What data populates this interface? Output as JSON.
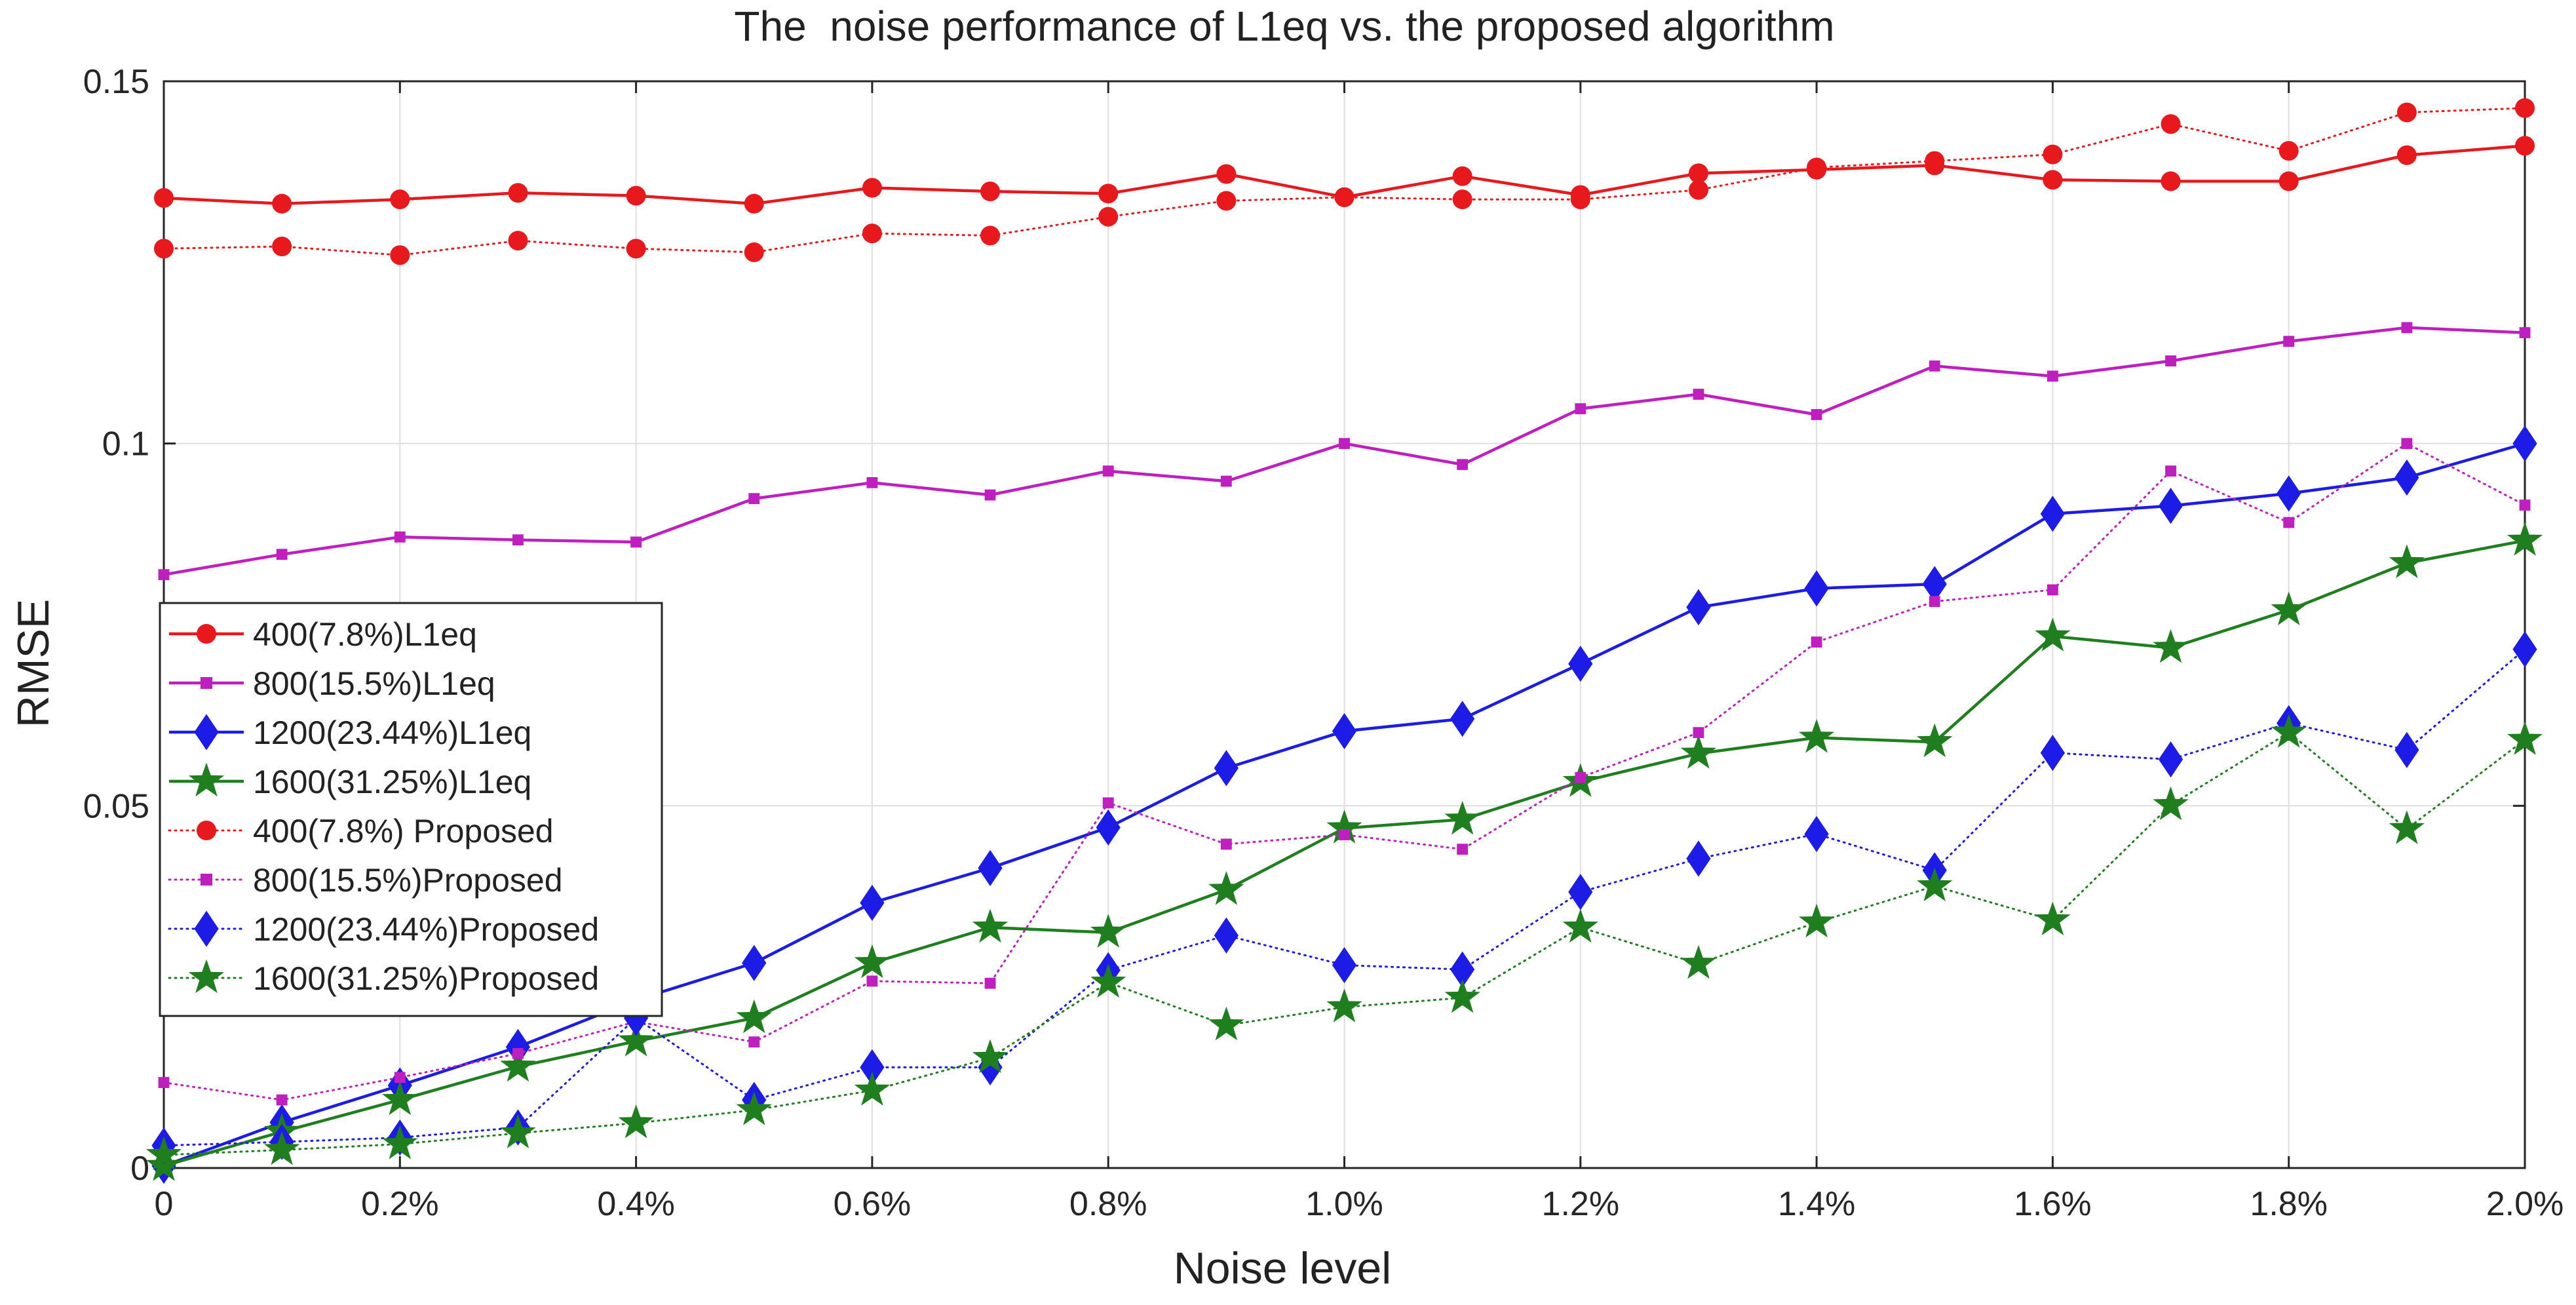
{
  "chart_data": {
    "type": "line",
    "title": "The  noise performance of L1eq vs. the proposed algorithm",
    "xlabel": "Noise level",
    "ylabel": "RMSE",
    "x": [
      0,
      0.1,
      0.2,
      0.3,
      0.4,
      0.5,
      0.6,
      0.7,
      0.8,
      0.9,
      1.0,
      1.1,
      1.2,
      1.3,
      1.4,
      1.5,
      1.6,
      1.7,
      1.8,
      1.9,
      2.0
    ],
    "xlim": [
      0,
      2.0
    ],
    "ylim": [
      0,
      0.15
    ],
    "xticks": [
      0,
      0.2,
      0.4,
      0.6,
      0.8,
      1.0,
      1.2,
      1.4,
      1.6,
      1.8,
      2.0
    ],
    "xtick_labels": [
      "0",
      "0.2%",
      "0.4%",
      "0.6%",
      "0.8%",
      "1.0%",
      "1.2%",
      "1.4%",
      "1.6%",
      "1.8%",
      "2.0%"
    ],
    "yticks": [
      0,
      0.05,
      0.1,
      0.15
    ],
    "ytick_labels": [
      "0",
      "0.05",
      "0.1",
      "0.15"
    ],
    "grid": true,
    "legend_position": "left-middle",
    "series": [
      {
        "name": "400(7.8%)L1eq",
        "color": "#e8191d",
        "style": "solid",
        "marker": "circle",
        "values": [
          0.1339,
          0.1331,
          0.1337,
          0.1346,
          0.1342,
          0.1331,
          0.1353,
          0.1348,
          0.1345,
          0.1372,
          0.134,
          0.1369,
          0.1343,
          0.1373,
          0.1378,
          0.1384,
          0.1364,
          0.1362,
          0.1362,
          0.1398,
          0.1411
        ]
      },
      {
        "name": "800(15.5%)L1eq",
        "color": "#bf1fbf",
        "style": "solid",
        "marker": "square",
        "values": [
          0.0819,
          0.0847,
          0.0871,
          0.0867,
          0.0864,
          0.0924,
          0.0946,
          0.0929,
          0.0962,
          0.0948,
          0.1,
          0.0971,
          0.1048,
          0.1068,
          0.104,
          0.1107,
          0.1093,
          0.1114,
          0.1141,
          0.116,
          0.1153
        ]
      },
      {
        "name": "1200(23.44%)L1eq",
        "color": "#1c1ce6",
        "style": "solid",
        "marker": "diamond",
        "values": [
          0.0003,
          0.0063,
          0.0114,
          0.0167,
          0.0232,
          0.0283,
          0.0366,
          0.0414,
          0.047,
          0.0552,
          0.0603,
          0.062,
          0.0696,
          0.0774,
          0.08,
          0.0806,
          0.0903,
          0.0914,
          0.0931,
          0.0953,
          0.1
        ]
      },
      {
        "name": "1600(31.25%)L1eq",
        "color": "#1f7f1f",
        "style": "solid",
        "marker": "star",
        "values": [
          0.0003,
          0.005,
          0.0094,
          0.014,
          0.0175,
          0.0207,
          0.0283,
          0.0332,
          0.0325,
          0.0384,
          0.0469,
          0.0481,
          0.0533,
          0.0572,
          0.0594,
          0.0588,
          0.0734,
          0.0718,
          0.077,
          0.0835,
          0.0866
        ]
      },
      {
        "name": "400(7.8%) Proposed",
        "color": "#e8191d",
        "style": "dotted",
        "marker": "circle",
        "values": [
          0.1269,
          0.1272,
          0.126,
          0.128,
          0.1269,
          0.1264,
          0.129,
          0.1287,
          0.1313,
          0.1335,
          0.134,
          0.1337,
          0.1337,
          0.135,
          0.1381,
          0.139,
          0.1399,
          0.1441,
          0.1404,
          0.1457,
          0.1463
        ]
      },
      {
        "name": "800(15.5%)Proposed",
        "color": "#bf1fbf",
        "style": "dotted",
        "marker": "square",
        "values": [
          0.0118,
          0.0094,
          0.0125,
          0.0158,
          0.0202,
          0.0174,
          0.0258,
          0.0255,
          0.0504,
          0.0447,
          0.046,
          0.044,
          0.0539,
          0.0601,
          0.0726,
          0.0782,
          0.0798,
          0.0962,
          0.0891,
          0.1,
          0.0915
        ]
      },
      {
        "name": "1200(23.44%)Proposed",
        "color": "#1c1ce6",
        "style": "dotted",
        "marker": "diamond",
        "values": [
          0.0031,
          0.0036,
          0.0042,
          0.0056,
          0.0207,
          0.0094,
          0.0139,
          0.0139,
          0.0273,
          0.0321,
          0.028,
          0.0274,
          0.0381,
          0.0427,
          0.0461,
          0.0411,
          0.0573,
          0.0564,
          0.0614,
          0.0577,
          0.0716
        ]
      },
      {
        "name": "1600(31.25%)Proposed",
        "color": "#1f7f1f",
        "style": "dotted",
        "marker": "star",
        "values": [
          0.0018,
          0.0025,
          0.0033,
          0.0048,
          0.0062,
          0.008,
          0.0107,
          0.0152,
          0.0256,
          0.0197,
          0.0222,
          0.0235,
          0.0332,
          0.0282,
          0.0339,
          0.0389,
          0.0342,
          0.0501,
          0.0601,
          0.0468,
          0.0591
        ]
      }
    ]
  }
}
